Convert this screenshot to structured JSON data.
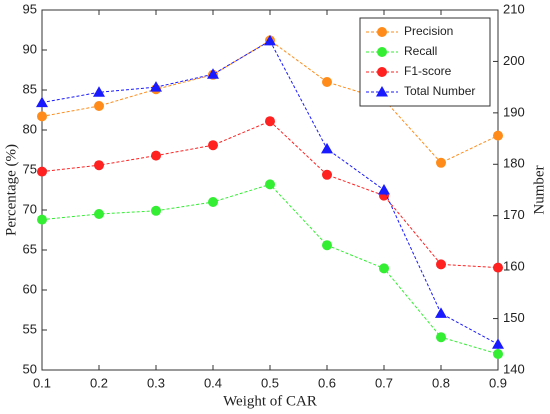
{
  "chart_data": {
    "type": "line",
    "x_label": "Weight of CAR",
    "y_label": "Percentage (%)",
    "y2_label": "Number",
    "x": [
      0.1,
      0.2,
      0.3,
      0.4,
      0.5,
      0.6,
      0.7,
      0.8,
      0.9
    ],
    "xlim": [
      0.1,
      0.9
    ],
    "xticks": [
      0.1,
      0.2,
      0.3,
      0.4,
      0.5,
      0.6,
      0.7,
      0.8,
      0.9
    ],
    "ylim": [
      50,
      95
    ],
    "yticks": [
      50,
      55,
      60,
      65,
      70,
      75,
      80,
      85,
      90,
      95
    ],
    "y2lim": [
      140,
      210
    ],
    "y2ticks": [
      140,
      150,
      160,
      170,
      180,
      190,
      200,
      210
    ],
    "legend": "upper right",
    "series": [
      {
        "name": "Precision",
        "color": "#ff8c1a",
        "marker": "circle",
        "values": [
          81.7,
          83.0,
          85.1,
          86.9,
          91.2,
          86.0,
          83.8,
          75.9,
          79.3
        ]
      },
      {
        "name": "Recall",
        "color": "#33ee33",
        "marker": "circle",
        "values": [
          68.8,
          69.5,
          69.9,
          71.0,
          73.2,
          65.6,
          62.7,
          54.1,
          52.0
        ]
      },
      {
        "name": "F1-score",
        "color": "#ff2020",
        "marker": "circle",
        "values": [
          74.8,
          75.6,
          76.8,
          78.1,
          81.1,
          74.4,
          71.8,
          63.2,
          62.8
        ]
      },
      {
        "name": "Total Number",
        "color": "#1a1aff",
        "marker": "triangle",
        "axis": "y2",
        "values": [
          192,
          194,
          195,
          197.5,
          204,
          183,
          175,
          151,
          145
        ]
      }
    ]
  }
}
